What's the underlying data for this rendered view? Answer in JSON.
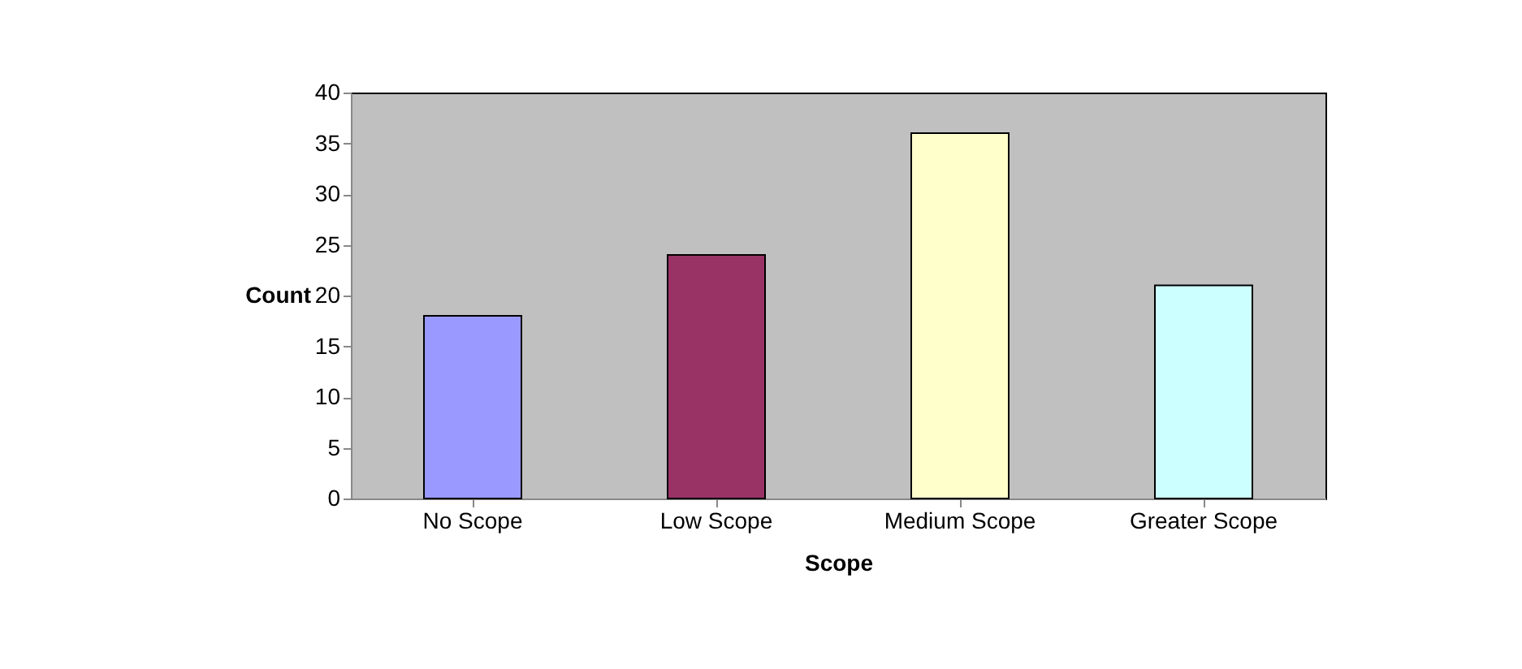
{
  "chart_data": {
    "type": "bar",
    "xlabel": "Scope",
    "ylabel": "Count",
    "categories": [
      "No Scope",
      "Low Scope",
      "Medium Scope",
      "Greater Scope"
    ],
    "values": [
      18,
      24,
      36,
      21
    ],
    "colors": [
      "#9999ff",
      "#993366",
      "#ffffcc",
      "#ccffff"
    ],
    "ylim": [
      0,
      40
    ],
    "yticks": [
      0,
      5,
      10,
      15,
      20,
      25,
      30,
      35,
      40
    ],
    "grid": false
  }
}
